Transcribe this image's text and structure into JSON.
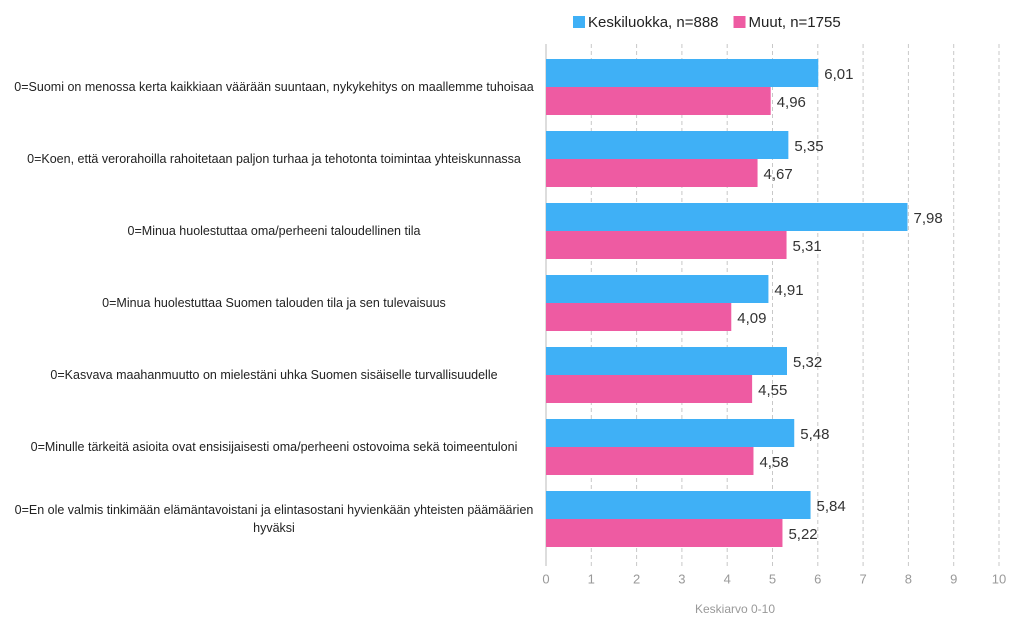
{
  "chart_data": {
    "type": "bar",
    "orientation": "horizontal",
    "categories": [
      "0=Suomi on menossa kerta kaikkiaan väärään suuntaan, nykykehitys on maallemme tuhoisaa",
      "0=Koen, että verorahoilla rahoitetaan paljon turhaa ja tehotonta toimintaa yhteiskunnassa",
      "0=Minua huolestuttaa oma/perheeni taloudellinen tila",
      "0=Minua huolestuttaa Suomen talouden tila ja sen tulevaisuus",
      "0=Kasvava maahanmuutto on mielestäni uhka Suomen sisäiselle turvallisuudelle",
      "0=Minulle tärkeitä asioita ovat ensisijaisesti oma/perheeni ostovoima sekä toimeentuloni",
      "0=En ole valmis tinkimään elämäntavoistani ja elintasostani hyvienkään yhteisten päämäärien hyväksi"
    ],
    "series": [
      {
        "name": "Keskiluokka, n=888",
        "color": "#3fb0f6",
        "values": [
          6.01,
          5.35,
          7.98,
          4.91,
          5.32,
          5.48,
          5.84
        ],
        "value_labels": [
          "6,01",
          "5,35",
          "7,98",
          "4,91",
          "5,32",
          "5,48",
          "5,84"
        ]
      },
      {
        "name": "Muut, n=1755",
        "color": "#ee5ba2",
        "values": [
          4.96,
          4.67,
          5.31,
          4.09,
          4.55,
          4.58,
          5.22
        ],
        "value_labels": [
          "4,96",
          "4,67",
          "5,31",
          "4,09",
          "4,55",
          "4,58",
          "5,22"
        ]
      }
    ],
    "xlabel": "Keskiarvo 0-10",
    "xlim": [
      0,
      10
    ],
    "xticks": [
      0,
      1,
      2,
      3,
      4,
      5,
      6,
      7,
      8,
      9,
      10
    ],
    "grid": true,
    "legend": "top"
  }
}
